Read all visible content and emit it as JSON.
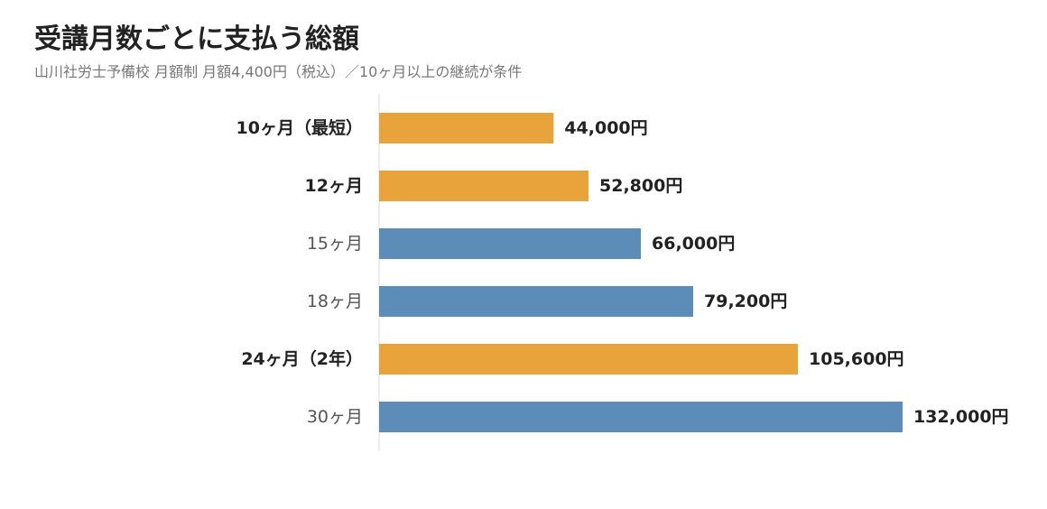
{
  "title": "受講月数ごとに支払う総額",
  "subtitle": "山川社労士予備校 月額制 月額4,400円（税込）／10ヶ月以上の継続が条件",
  "colors": {
    "highlight": "#E8A33A",
    "normal": "#5B8DB8",
    "axis": "#DDDDDD",
    "label_bold": "#222222",
    "label_normal": "#555555"
  },
  "chart_data": {
    "type": "bar",
    "orientation": "horizontal",
    "title": "受講月数ごとに支払う総額",
    "subtitle": "山川社労士予備校 月額制 月額4,400円（税込）／10ヶ月以上の継続が条件",
    "categories": [
      "10ヶ月（最短）",
      "12ヶ月",
      "15ヶ月",
      "18ヶ月",
      "24ヶ月（2年）",
      "30ヶ月"
    ],
    "values": [
      44000,
      52800,
      66000,
      79200,
      105600,
      132000
    ],
    "value_labels": [
      "44,000円",
      "52,800円",
      "66,000円",
      "79,200円",
      "105,600円",
      "132,000円"
    ],
    "highlighted": [
      true,
      true,
      false,
      false,
      true,
      false
    ],
    "xlim": [
      0,
      132000
    ],
    "grid": false,
    "legend": "none"
  }
}
